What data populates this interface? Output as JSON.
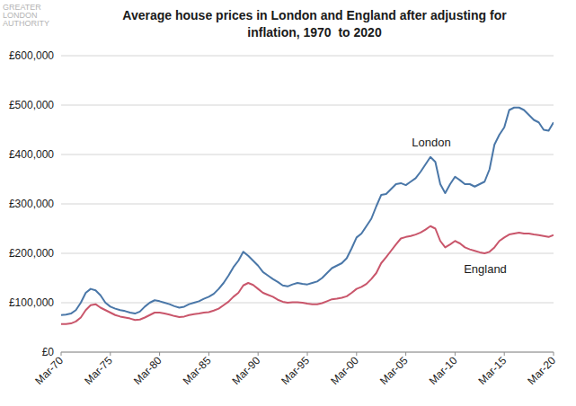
{
  "chart_data": {
    "type": "line",
    "title": "Average house prices in London and England after adjusting for inflation, 1970  to 2020",
    "logo": [
      "GREATER",
      "LONDON",
      "AUTHORITY"
    ],
    "categories": [
      "Mar-70",
      null,
      null,
      null,
      null,
      null,
      null,
      null,
      null,
      null,
      "Mar-75",
      null,
      null,
      null,
      null,
      null,
      null,
      null,
      null,
      null,
      "Mar-80",
      null,
      null,
      null,
      null,
      null,
      null,
      null,
      null,
      null,
      "Mar-85",
      null,
      null,
      null,
      null,
      null,
      null,
      null,
      null,
      null,
      "Mar-90",
      null,
      null,
      null,
      null,
      null,
      null,
      null,
      null,
      null,
      "Mar-95",
      null,
      null,
      null,
      null,
      null,
      null,
      null,
      null,
      null,
      "Mar-00",
      null,
      null,
      null,
      null,
      null,
      null,
      null,
      null,
      null,
      "Mar-05",
      null,
      null,
      null,
      null,
      null,
      null,
      null,
      null,
      null,
      "Mar-10",
      null,
      null,
      null,
      null,
      null,
      null,
      null,
      null,
      null,
      "Mar-15",
      null,
      null,
      null,
      null,
      null,
      null,
      null,
      null,
      null,
      "Mar-20"
    ],
    "series": [
      {
        "name": "London",
        "color": "#4a77a8",
        "values": [
          75000,
          76000,
          78000,
          85000,
          100000,
          120000,
          128000,
          125000,
          115000,
          100000,
          92000,
          88000,
          85000,
          83000,
          80000,
          78000,
          82000,
          92000,
          100000,
          105000,
          103000,
          100000,
          97000,
          93000,
          90000,
          92000,
          97000,
          100000,
          103000,
          108000,
          112000,
          118000,
          128000,
          140000,
          155000,
          172000,
          185000,
          203000,
          195000,
          185000,
          175000,
          162000,
          155000,
          148000,
          142000,
          135000,
          133000,
          137000,
          140000,
          138000,
          137000,
          140000,
          143000,
          150000,
          160000,
          170000,
          175000,
          180000,
          190000,
          210000,
          232000,
          240000,
          255000,
          270000,
          295000,
          318000,
          320000,
          330000,
          340000,
          342000,
          338000,
          345000,
          352000,
          365000,
          380000,
          395000,
          385000,
          340000,
          322000,
          340000,
          355000,
          348000,
          340000,
          340000,
          335000,
          340000,
          345000,
          370000,
          420000,
          440000,
          455000,
          490000,
          495000,
          495000,
          490000,
          480000,
          470000,
          465000,
          450000,
          448000,
          465000
        ]
      },
      {
        "name": "England",
        "color": "#c9566b",
        "values": [
          57000,
          57000,
          58000,
          62000,
          70000,
          85000,
          95000,
          97000,
          90000,
          85000,
          80000,
          75000,
          72000,
          70000,
          68000,
          65000,
          66000,
          70000,
          75000,
          80000,
          80000,
          78000,
          76000,
          73000,
          71000,
          72000,
          75000,
          77000,
          78000,
          80000,
          81000,
          84000,
          88000,
          95000,
          102000,
          112000,
          120000,
          135000,
          140000,
          136000,
          128000,
          120000,
          116000,
          112000,
          106000,
          102000,
          100000,
          101000,
          101000,
          100000,
          98000,
          97000,
          97000,
          99000,
          103000,
          107000,
          108000,
          110000,
          113000,
          120000,
          128000,
          132000,
          138000,
          148000,
          160000,
          180000,
          192000,
          205000,
          218000,
          230000,
          233000,
          235000,
          238000,
          242000,
          248000,
          255000,
          250000,
          225000,
          212000,
          218000,
          225000,
          220000,
          212000,
          208000,
          205000,
          202000,
          200000,
          203000,
          212000,
          225000,
          232000,
          238000,
          240000,
          242000,
          240000,
          240000,
          238000,
          237000,
          235000,
          233000,
          237000
        ]
      }
    ],
    "ylim": [
      0,
      600000
    ],
    "yticks": [
      {
        "value": 0,
        "label": "£0"
      },
      {
        "value": 100000,
        "label": "£100,000"
      },
      {
        "value": 200000,
        "label": "£200,000"
      },
      {
        "value": 300000,
        "label": "£300,000"
      },
      {
        "value": 400000,
        "label": "£400,000"
      },
      {
        "value": 500000,
        "label": "£500,000"
      },
      {
        "value": 600000,
        "label": "£600,000"
      }
    ],
    "grid": true
  }
}
